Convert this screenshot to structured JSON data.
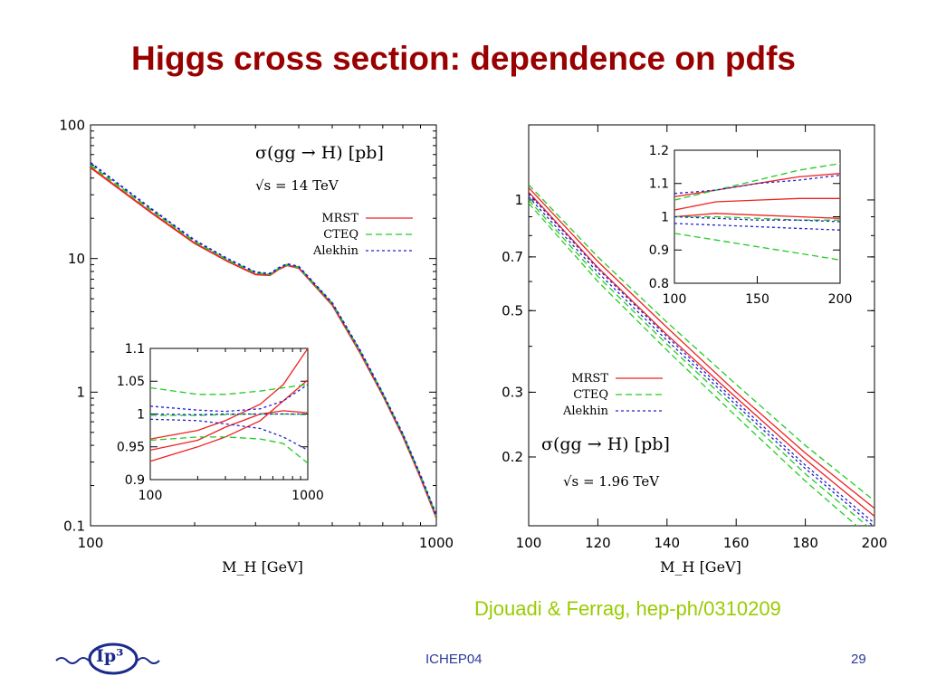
{
  "slide": {
    "title": "Higgs cross section: dependence on pdfs",
    "citation": "Djouadi & Ferrag, hep-ph/0310209",
    "footer_center": "ICHEP04",
    "page_number": "29",
    "logo_text": "Ip³"
  },
  "colors": {
    "title": "#990000",
    "citation": "#99cc00",
    "footer": "#2a3a9c",
    "MRST": "#ee2222",
    "CTEQ": "#22cc22",
    "Alekhin": "#2222cc"
  },
  "chart_data": [
    {
      "type": "line",
      "xlabel": "M_H [GeV]",
      "ylabel": "",
      "xscale": "log",
      "yscale": "log",
      "xlim": [
        100,
        1000
      ],
      "ylim": [
        0.1,
        100
      ],
      "xticks": [
        "100",
        "1000"
      ],
      "yticks": [
        "0.1",
        "1",
        "10",
        "100"
      ],
      "annotations": [
        "σ(gg → H) [pb]",
        "√s = 14 TeV"
      ],
      "legend": [
        "MRST",
        "CTEQ",
        "Alekhin"
      ],
      "legend_position": "top-right",
      "series": [
        {
          "name": "MRST",
          "style": "solid",
          "x": [
            100,
            150,
            200,
            250,
            300,
            330,
            350,
            370,
            400,
            500,
            600,
            700,
            800,
            900,
            1000
          ],
          "y": [
            48,
            22,
            13,
            9.5,
            7.6,
            7.5,
            8.3,
            8.9,
            8.5,
            4.5,
            2.0,
            0.95,
            0.47,
            0.23,
            0.115
          ]
        },
        {
          "name": "CTEQ",
          "style": "dashed",
          "x": [
            100,
            150,
            200,
            250,
            300,
            330,
            350,
            370,
            400,
            500,
            600,
            700,
            800,
            900,
            1000
          ],
          "y": [
            50,
            23,
            13.4,
            9.7,
            7.8,
            7.6,
            8.4,
            9.0,
            8.6,
            4.6,
            2.05,
            0.97,
            0.48,
            0.235,
            0.118
          ]
        },
        {
          "name": "Alekhin",
          "style": "dotted",
          "x": [
            100,
            150,
            200,
            250,
            300,
            330,
            350,
            370,
            400,
            500,
            600,
            700,
            800,
            900,
            1000
          ],
          "y": [
            52,
            23.5,
            13.7,
            9.9,
            7.9,
            7.7,
            8.5,
            9.1,
            8.7,
            4.65,
            2.08,
            0.98,
            0.485,
            0.238,
            0.12
          ]
        }
      ],
      "inset": {
        "xscale": "log",
        "xlim": [
          100,
          1000
        ],
        "ylim": [
          0.9,
          1.1
        ],
        "xticks": [
          "100",
          "1000"
        ],
        "yticks": [
          "0.9",
          "0.95",
          "1",
          "1.05",
          "1.1"
        ],
        "series": [
          {
            "name": "MRST",
            "style": "solid",
            "x": [
              100,
              200,
              300,
              500,
              700,
              1000
            ],
            "y": [
              0.962,
              0.975,
              0.99,
              1.015,
              1.045,
              1.1
            ]
          },
          {
            "name": "MRST",
            "style": "solid",
            "x": [
              100,
              200,
              300,
              500,
              700,
              1000
            ],
            "y": [
              0.928,
              0.95,
              0.965,
              0.99,
              1.02,
              1.052
            ]
          },
          {
            "name": "MRST",
            "style": "solid",
            "x": [
              100,
              200,
              300,
              500,
              700,
              1000
            ],
            "y": [
              0.945,
              0.96,
              0.98,
              1.0,
              1.005,
              1.002
            ]
          },
          {
            "name": "CTEQ",
            "style": "dashed",
            "x": [
              100,
              200,
              300,
              500,
              700,
              1000
            ],
            "y": [
              1.04,
              1.03,
              1.03,
              1.035,
              1.04,
              1.045
            ]
          },
          {
            "name": "CTEQ",
            "style": "dashed",
            "x": [
              100,
              200,
              300,
              500,
              700,
              1000
            ],
            "y": [
              0.96,
              0.965,
              0.965,
              0.962,
              0.955,
              0.925
            ]
          },
          {
            "name": "CTEQ",
            "style": "dashed",
            "x": [
              100,
              200,
              300,
              500,
              700,
              1000
            ],
            "y": [
              0.998,
              0.998,
              0.999,
              1.0,
              1.0,
              0.999
            ]
          },
          {
            "name": "Alekhin",
            "style": "dotted",
            "x": [
              100,
              200,
              300,
              500,
              700,
              1000
            ],
            "y": [
              1.012,
              1.006,
              1.004,
              1.008,
              1.02,
              1.045
            ]
          },
          {
            "name": "Alekhin",
            "style": "dotted",
            "x": [
              100,
              200,
              300,
              500,
              700,
              1000
            ],
            "y": [
              0.992,
              0.99,
              0.985,
              0.978,
              0.965,
              0.945
            ]
          },
          {
            "name": "Alekhin",
            "style": "dotted",
            "x": [
              100,
              200,
              300,
              500,
              700,
              1000
            ],
            "y": [
              1.0,
              0.999,
              1.0,
              1.0,
              1.0,
              1.0
            ]
          }
        ]
      }
    },
    {
      "type": "line",
      "xlabel": "M_H [GeV]",
      "ylabel": "",
      "xscale": "linear",
      "yscale": "log",
      "xlim": [
        100,
        200
      ],
      "ylim": [
        0.13,
        1.6
      ],
      "xticks": [
        "100",
        "120",
        "140",
        "160",
        "180",
        "200"
      ],
      "yticks": [
        "0.2",
        "0.3",
        "0.5",
        "0.7",
        "1"
      ],
      "annotations": [
        "σ(gg → H) [pb]",
        "√s = 1.96 TeV"
      ],
      "legend": [
        "MRST",
        "CTEQ",
        "Alekhin"
      ],
      "legend_position": "center-left",
      "series": [
        {
          "name": "MRST",
          "style": "solid",
          "x": [
            100,
            120,
            140,
            160,
            180,
            200
          ],
          "y": [
            1.08,
            0.68,
            0.45,
            0.3,
            0.205,
            0.145
          ]
        },
        {
          "name": "MRST",
          "style": "solid",
          "x": [
            100,
            120,
            140,
            160,
            180,
            200
          ],
          "y": [
            1.05,
            0.655,
            0.43,
            0.29,
            0.197,
            0.138
          ]
        },
        {
          "name": "CTEQ",
          "style": "dashed",
          "x": [
            100,
            120,
            140,
            160,
            180,
            200
          ],
          "y": [
            1.1,
            0.7,
            0.465,
            0.315,
            0.215,
            0.152
          ]
        },
        {
          "name": "CTEQ",
          "style": "dashed",
          "x": [
            100,
            120,
            140,
            160,
            180,
            200
          ],
          "y": [
            1.0,
            0.62,
            0.405,
            0.27,
            0.18,
            0.125
          ]
        },
        {
          "name": "CTEQ",
          "style": "dashed",
          "x": [
            100,
            120,
            140,
            160,
            180,
            200
          ],
          "y": [
            0.98,
            0.6,
            0.39,
            0.258,
            0.172,
            0.118
          ]
        },
        {
          "name": "Alekhin",
          "style": "dotted",
          "x": [
            100,
            120,
            140,
            160,
            180,
            200
          ],
          "y": [
            1.04,
            0.65,
            0.425,
            0.283,
            0.19,
            0.132
          ]
        },
        {
          "name": "Alekhin",
          "style": "dotted",
          "x": [
            100,
            120,
            140,
            160,
            180,
            200
          ],
          "y": [
            1.02,
            0.635,
            0.415,
            0.277,
            0.186,
            0.129
          ]
        }
      ],
      "inset": {
        "xscale": "linear",
        "xlim": [
          100,
          200
        ],
        "ylim": [
          0.8,
          1.2
        ],
        "xticks": [
          "100",
          "150",
          "200"
        ],
        "yticks": [
          "0.8",
          "0.9",
          "1",
          "1.1",
          "1.2"
        ],
        "series": [
          {
            "name": "MRST",
            "style": "solid",
            "x": [
              100,
              125,
              150,
              175,
              200
            ],
            "y": [
              1.06,
              1.08,
              1.1,
              1.12,
              1.13
            ]
          },
          {
            "name": "MRST",
            "style": "solid",
            "x": [
              100,
              125,
              150,
              175,
              200
            ],
            "y": [
              1.02,
              1.045,
              1.05,
              1.055,
              1.055
            ]
          },
          {
            "name": "MRST",
            "style": "solid",
            "x": [
              100,
              125,
              150,
              175,
              200
            ],
            "y": [
              1.0,
              1.01,
              1.005,
              1.0,
              0.995
            ]
          },
          {
            "name": "CTEQ",
            "style": "dashed",
            "x": [
              100,
              125,
              150,
              175,
              200
            ],
            "y": [
              1.05,
              1.08,
              1.11,
              1.14,
              1.16
            ]
          },
          {
            "name": "CTEQ",
            "style": "dashed",
            "x": [
              100,
              125,
              150,
              175,
              200
            ],
            "y": [
              0.95,
              0.93,
              0.91,
              0.89,
              0.87
            ]
          },
          {
            "name": "CTEQ",
            "style": "dashed",
            "x": [
              100,
              125,
              150,
              175,
              200
            ],
            "y": [
              1.0,
              1.0,
              0.995,
              0.99,
              0.99
            ]
          },
          {
            "name": "Alekhin",
            "style": "dotted",
            "x": [
              100,
              125,
              150,
              175,
              200
            ],
            "y": [
              1.07,
              1.08,
              1.1,
              1.11,
              1.125
            ]
          },
          {
            "name": "Alekhin",
            "style": "dotted",
            "x": [
              100,
              125,
              150,
              175,
              200
            ],
            "y": [
              0.98,
              0.975,
              0.97,
              0.965,
              0.96
            ]
          },
          {
            "name": "Alekhin",
            "style": "dotted",
            "x": [
              100,
              125,
              150,
              175,
              200
            ],
            "y": [
              1.0,
              0.995,
              0.99,
              0.99,
              0.985
            ]
          }
        ]
      }
    }
  ]
}
